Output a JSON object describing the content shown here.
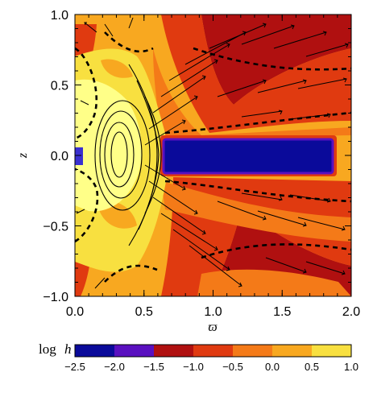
{
  "chart_data": {
    "type": "heatmap",
    "title": "",
    "xlabel": "ϖ",
    "ylabel": "z",
    "xlim": [
      0.0,
      2.0
    ],
    "ylim": [
      -1.0,
      1.0
    ],
    "x_ticks": [
      "0.0",
      "0.5",
      "1.0",
      "1.5",
      "2.0"
    ],
    "y_ticks": [
      "−1.0",
      "−0.5",
      "0.0",
      "0.5",
      "1.0"
    ],
    "x_tick_values": [
      0.0,
      0.5,
      1.0,
      1.5,
      2.0
    ],
    "y_tick_values": [
      -1.0,
      -0.5,
      0.0,
      0.5,
      1.0
    ],
    "overlays": [
      "velocity arrows",
      "dashed contours",
      "solid field lines"
    ],
    "colorbar": {
      "label_main": "log",
      "label_var": "h",
      "ticks": [
        "−2.5",
        "−2.0",
        "−1.5",
        "−1.0",
        "−0.5",
        "0.0",
        "0.5",
        "1.0"
      ],
      "tick_values": [
        -2.5,
        -2.0,
        -1.5,
        -1.0,
        -0.5,
        0.0,
        0.5,
        1.0
      ],
      "colors": [
        "#0a0a9a",
        "#5a10c0",
        "#b01010",
        "#e03a10",
        "#f47a18",
        "#f8a820",
        "#f8e040"
      ]
    },
    "colors": {
      "background": "#f8a820",
      "dark_red": "#b01010",
      "red": "#e03a10",
      "orange": "#f47a18",
      "yellow": "#f8e040",
      "pale_yellow": "#ffff88",
      "blue": "#0a0a9a",
      "purple": "#5a10c0"
    }
  }
}
